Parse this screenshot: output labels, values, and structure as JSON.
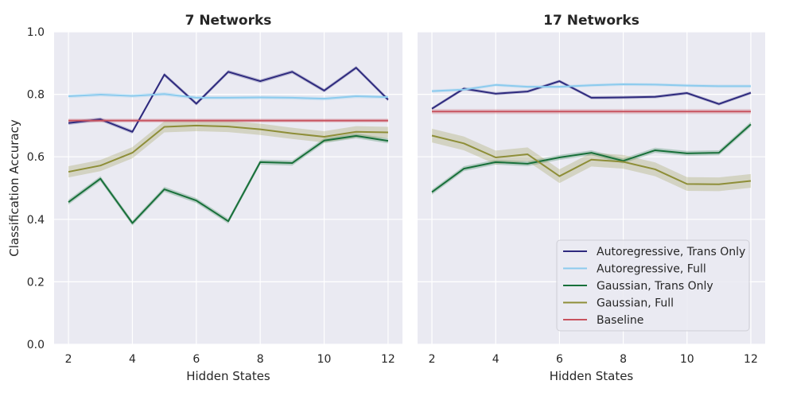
{
  "chart_data": [
    {
      "type": "line",
      "title": "7 Networks",
      "xlabel": "Hidden States",
      "ylabel": "Classification Accuracy",
      "xlim": [
        1.55,
        12.45
      ],
      "ylim": [
        0.0,
        1.0
      ],
      "xticks": [
        "2",
        "4",
        "6",
        "8",
        "10",
        "12"
      ],
      "yticks": [
        "0.0",
        "0.2",
        "0.4",
        "0.6",
        "0.8",
        "1.0"
      ],
      "grid": true,
      "x": [
        2,
        3,
        4,
        5,
        6,
        7,
        8,
        9,
        10,
        11,
        12
      ],
      "series": [
        {
          "name": "Autoregressive, Trans Only",
          "color": "#2e2a7e",
          "band": 0.006,
          "values": [
            0.708,
            0.72,
            0.68,
            0.863,
            0.77,
            0.872,
            0.842,
            0.872,
            0.812,
            0.885,
            0.783
          ]
        },
        {
          "name": "Autoregressive, Full",
          "color": "#8ccbee",
          "band": 0.006,
          "values": [
            0.794,
            0.799,
            0.795,
            0.801,
            0.789,
            0.789,
            0.79,
            0.789,
            0.786,
            0.794,
            0.791
          ]
        },
        {
          "name": "Gaussian, Trans Only",
          "color": "#18703a",
          "band": 0.008,
          "values": [
            0.455,
            0.53,
            0.388,
            0.496,
            0.46,
            0.394,
            0.583,
            0.58,
            0.652,
            0.667,
            0.651
          ]
        },
        {
          "name": "Gaussian, Full",
          "color": "#8e8e38",
          "band": 0.018,
          "values": [
            0.552,
            0.572,
            0.613,
            0.696,
            0.7,
            0.697,
            0.688,
            0.675,
            0.664,
            0.68,
            0.678
          ]
        },
        {
          "name": "Baseline",
          "color": "#c8525e",
          "band": 0.006,
          "values": [
            0.716,
            0.716,
            0.716,
            0.716,
            0.716,
            0.716,
            0.716,
            0.716,
            0.716,
            0.716,
            0.716
          ]
        }
      ]
    },
    {
      "type": "line",
      "title": "17 Networks",
      "xlabel": "Hidden States",
      "ylabel": "",
      "xlim": [
        1.55,
        12.45
      ],
      "ylim": [
        0.0,
        1.0
      ],
      "xticks": [
        "2",
        "4",
        "6",
        "8",
        "10",
        "12"
      ],
      "yticks": [],
      "grid": true,
      "legend": "lower-right",
      "x": [
        2,
        3,
        4,
        5,
        6,
        7,
        8,
        9,
        10,
        11,
        12
      ],
      "series": [
        {
          "name": "Autoregressive, Trans Only",
          "color": "#2e2a7e",
          "band": 0.005,
          "values": [
            0.754,
            0.818,
            0.802,
            0.809,
            0.842,
            0.789,
            0.79,
            0.792,
            0.804,
            0.769,
            0.805
          ]
        },
        {
          "name": "Autoregressive, Full",
          "color": "#8ccbee",
          "band": 0.005,
          "values": [
            0.81,
            0.815,
            0.83,
            0.824,
            0.824,
            0.829,
            0.832,
            0.831,
            0.828,
            0.826,
            0.826
          ]
        },
        {
          "name": "Gaussian, Trans Only",
          "color": "#18703a",
          "band": 0.008,
          "values": [
            0.487,
            0.562,
            0.583,
            0.578,
            0.598,
            0.613,
            0.587,
            0.621,
            0.611,
            0.613,
            0.704
          ]
        },
        {
          "name": "Gaussian, Full",
          "color": "#8e8e38",
          "band": 0.022,
          "values": [
            0.668,
            0.643,
            0.598,
            0.608,
            0.538,
            0.591,
            0.584,
            0.56,
            0.513,
            0.512,
            0.523
          ]
        },
        {
          "name": "Baseline",
          "color": "#c8525e",
          "band": 0.008,
          "values": [
            0.745,
            0.745,
            0.745,
            0.745,
            0.745,
            0.745,
            0.745,
            0.745,
            0.745,
            0.745,
            0.745
          ]
        }
      ]
    }
  ]
}
